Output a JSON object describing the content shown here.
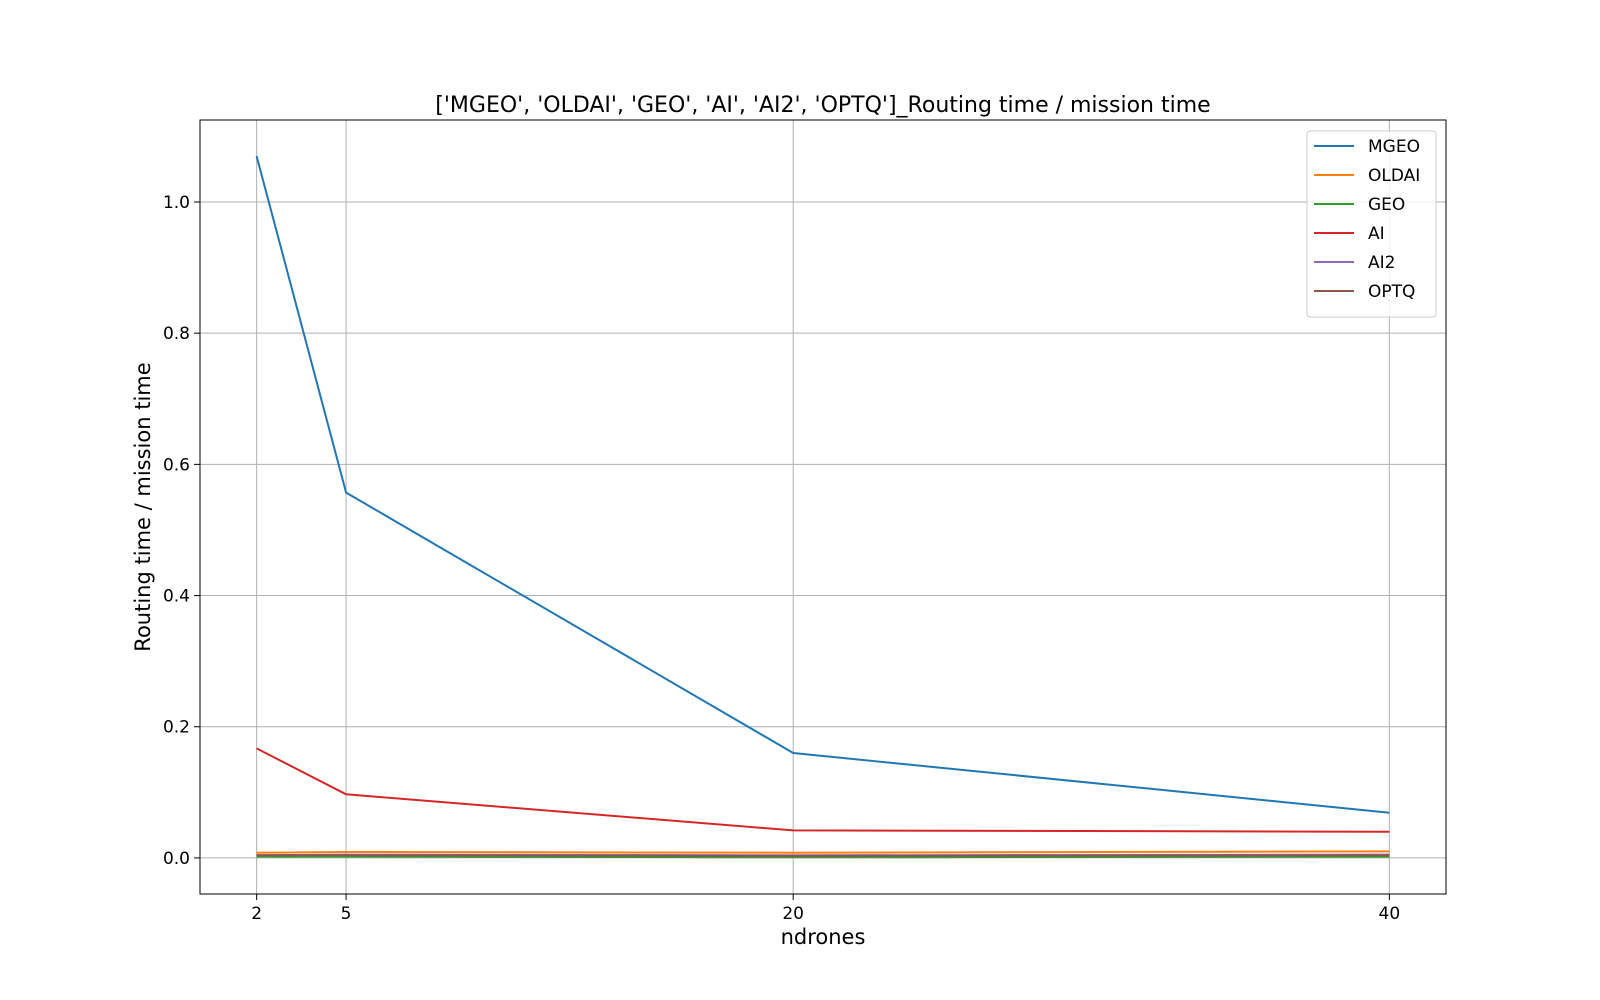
{
  "chart_data": {
    "type": "line",
    "title": "['MGEO', 'OLDAI', 'GEO', 'AI', 'AI2', 'OPTQ']_Routing time / mission time",
    "xlabel": "ndrones",
    "ylabel": "Routing time / mission time",
    "x": [
      2,
      5,
      20,
      40
    ],
    "x_ticks": [
      "2",
      "5",
      "20",
      "40"
    ],
    "y_ticks": [
      "0.0",
      "0.2",
      "0.4",
      "0.6",
      "0.8",
      "1.0"
    ],
    "xlim": [
      0.1,
      41.9
    ],
    "ylim": [
      -0.055,
      1.125
    ],
    "grid": true,
    "legend_position": "top-right",
    "series": [
      {
        "name": "MGEO",
        "color": "#1f77b4",
        "values": [
          1.07,
          0.557,
          0.16,
          0.069
        ]
      },
      {
        "name": "OLDAI",
        "color": "#ff7f0e",
        "values": [
          0.008,
          0.009,
          0.008,
          0.01
        ]
      },
      {
        "name": "GEO",
        "color": "#2ca02c",
        "values": [
          0.002,
          0.002,
          0.001,
          0.002
        ]
      },
      {
        "name": "AI",
        "color": "#d62728",
        "values": [
          0.167,
          0.097,
          0.042,
          0.04
        ]
      },
      {
        "name": "AI2",
        "color": "#9467bd",
        "values": [
          0.004,
          0.005,
          0.004,
          0.005
        ]
      },
      {
        "name": "OPTQ",
        "color": "#8c564b",
        "values": [
          0.004,
          0.004,
          0.003,
          0.004
        ]
      }
    ]
  }
}
